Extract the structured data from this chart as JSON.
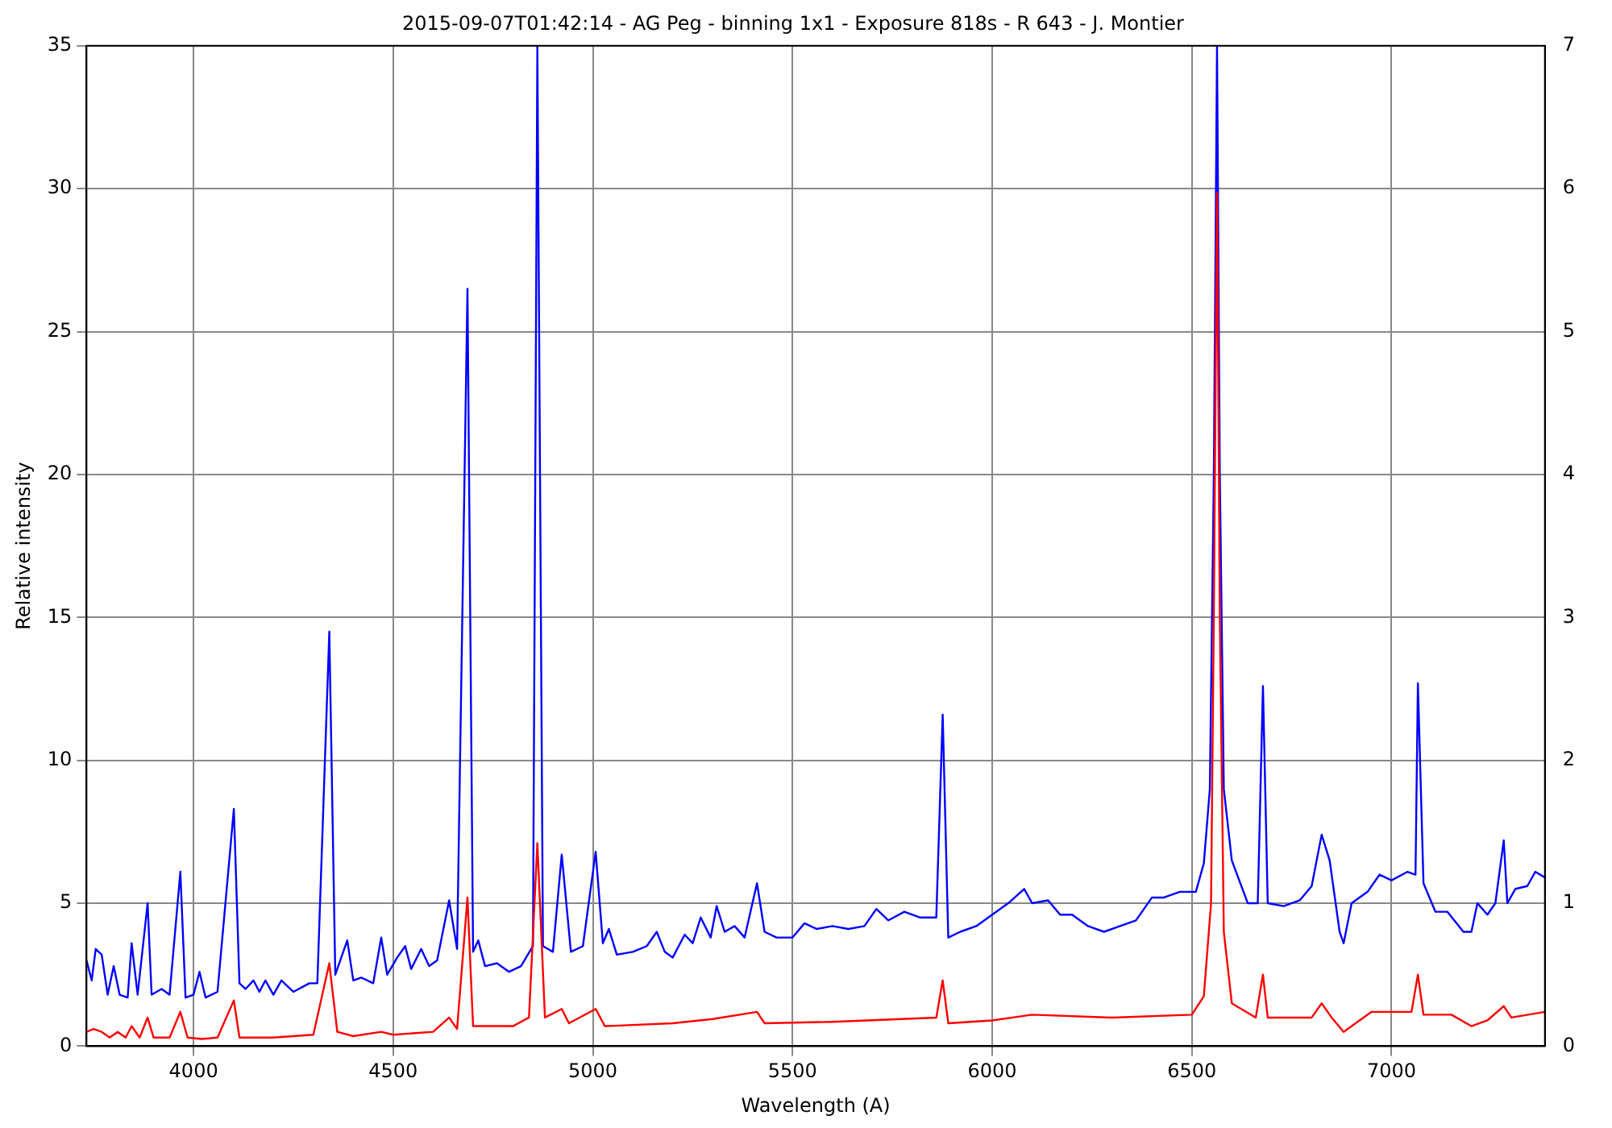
{
  "chart_data": {
    "type": "line",
    "title": "2015-09-07T01:42:14 - AG Peg - binning 1x1 - Exposure 818s - R 643 - J. Montier",
    "xlabel": "Wavelength (A)",
    "ylabel": "Relative intensity",
    "xlim": [
      3732,
      7384
    ],
    "xticks": [
      4000,
      4500,
      5000,
      5500,
      6000,
      6500,
      7000
    ],
    "ylim": [
      0,
      35
    ],
    "yticks": [
      0,
      5,
      10,
      15,
      20,
      25,
      30,
      35
    ],
    "y2lim": [
      0,
      7
    ],
    "y2ticks": [
      0,
      1,
      2,
      3,
      4,
      5,
      6,
      7
    ],
    "grid": true,
    "marker": "none",
    "legend": false,
    "series": [
      {
        "color": "#0000ff",
        "x": [
          3732,
          3745,
          3755,
          3770,
          3785,
          3800,
          3815,
          3835,
          3845,
          3860,
          3885,
          3895,
          3920,
          3940,
          3967,
          3980,
          4000,
          4015,
          4030,
          4060,
          4101,
          4115,
          4130,
          4150,
          4165,
          4180,
          4200,
          4220,
          4250,
          4290,
          4310,
          4340,
          4355,
          4385,
          4400,
          4420,
          4450,
          4470,
          4485,
          4510,
          4530,
          4545,
          4570,
          4590,
          4610,
          4640,
          4660,
          4686,
          4700,
          4713,
          4730,
          4760,
          4790,
          4820,
          4850,
          4861,
          4875,
          4900,
          4922,
          4945,
          4975,
          5007,
          5025,
          5040,
          5060,
          5100,
          5135,
          5160,
          5180,
          5200,
          5230,
          5250,
          5270,
          5295,
          5310,
          5330,
          5355,
          5380,
          5411,
          5430,
          5460,
          5500,
          5530,
          5560,
          5600,
          5640,
          5680,
          5710,
          5740,
          5780,
          5820,
          5860,
          5876,
          5890,
          5920,
          5960,
          6000,
          6040,
          6080,
          6100,
          6140,
          6170,
          6200,
          6240,
          6280,
          6320,
          6360,
          6400,
          6430,
          6470,
          6510,
          6530,
          6545,
          6555,
          6563,
          6570,
          6580,
          6600,
          6640,
          6665,
          6678,
          6690,
          6730,
          6770,
          6800,
          6825,
          6845,
          6870,
          6880,
          6900,
          6940,
          6970,
          7000,
          7040,
          7060,
          7066,
          7080,
          7110,
          7140,
          7180,
          7200,
          7215,
          7240,
          7260,
          7281,
          7290,
          7310,
          7340,
          7360,
          7384
        ],
        "values": [
          3.0,
          2.3,
          3.4,
          3.2,
          1.8,
          2.8,
          1.8,
          1.7,
          3.6,
          1.8,
          5.0,
          1.8,
          2.0,
          1.8,
          6.1,
          1.7,
          1.8,
          2.6,
          1.7,
          1.9,
          8.3,
          2.2,
          2.0,
          2.3,
          1.9,
          2.3,
          1.8,
          2.3,
          1.9,
          2.2,
          2.2,
          14.5,
          2.5,
          3.7,
          2.3,
          2.4,
          2.2,
          3.8,
          2.5,
          3.1,
          3.5,
          2.7,
          3.4,
          2.8,
          3.0,
          5.1,
          3.4,
          26.5,
          3.3,
          3.7,
          2.8,
          2.9,
          2.6,
          2.8,
          3.5,
          35,
          3.5,
          3.3,
          6.7,
          3.3,
          3.5,
          6.8,
          3.6,
          4.1,
          3.2,
          3.3,
          3.5,
          4.0,
          3.3,
          3.1,
          3.9,
          3.6,
          4.5,
          3.8,
          4.9,
          4.0,
          4.2,
          3.8,
          5.7,
          4.0,
          3.8,
          3.8,
          4.3,
          4.1,
          4.2,
          4.1,
          4.2,
          4.8,
          4.4,
          4.7,
          4.5,
          4.5,
          11.6,
          3.8,
          4.0,
          4.2,
          4.6,
          5.0,
          5.5,
          5.0,
          5.1,
          4.6,
          4.6,
          4.2,
          4.0,
          4.2,
          4.4,
          5.2,
          5.2,
          5.4,
          5.4,
          6.4,
          9.0,
          20,
          35,
          20,
          9.0,
          6.5,
          5.0,
          5.0,
          12.6,
          5.0,
          4.9,
          5.1,
          5.6,
          7.4,
          6.5,
          4.0,
          3.6,
          5.0,
          5.4,
          6.0,
          5.8,
          6.1,
          6.0,
          12.7,
          5.7,
          4.7,
          4.7,
          4.0,
          4.0,
          5.0,
          4.6,
          5.0,
          7.2,
          5.0,
          5.5,
          5.6,
          6.1,
          5.9
        ]
      },
      {
        "color": "#ff0000",
        "axis": "y2",
        "x": [
          3732,
          3750,
          3770,
          3790,
          3810,
          3830,
          3845,
          3865,
          3885,
          3900,
          3940,
          3967,
          3985,
          4020,
          4060,
          4101,
          4115,
          4200,
          4300,
          4340,
          4360,
          4400,
          4470,
          4500,
          4600,
          4640,
          4660,
          4686,
          4700,
          4800,
          4840,
          4861,
          4880,
          4922,
          4940,
          5007,
          5030,
          5200,
          5300,
          5411,
          5430,
          5600,
          5860,
          5876,
          5890,
          6000,
          6100,
          6300,
          6500,
          6530,
          6548,
          6555,
          6563,
          6570,
          6580,
          6600,
          6660,
          6678,
          6690,
          6800,
          6825,
          6850,
          6880,
          6950,
          7050,
          7066,
          7080,
          7150,
          7200,
          7240,
          7281,
          7300,
          7384
        ],
        "values": [
          0.1,
          0.12,
          0.1,
          0.06,
          0.1,
          0.06,
          0.14,
          0.06,
          0.2,
          0.06,
          0.06,
          0.24,
          0.06,
          0.05,
          0.06,
          0.32,
          0.06,
          0.06,
          0.08,
          0.58,
          0.1,
          0.07,
          0.1,
          0.08,
          0.1,
          0.2,
          0.12,
          1.04,
          0.14,
          0.14,
          0.2,
          1.42,
          0.2,
          0.26,
          0.16,
          0.26,
          0.14,
          0.16,
          0.19,
          0.24,
          0.16,
          0.17,
          0.2,
          0.46,
          0.16,
          0.18,
          0.22,
          0.2,
          0.22,
          0.35,
          1.0,
          3.0,
          5.97,
          3.0,
          0.8,
          0.3,
          0.2,
          0.5,
          0.2,
          0.2,
          0.3,
          0.2,
          0.1,
          0.24,
          0.24,
          0.5,
          0.22,
          0.22,
          0.14,
          0.18,
          0.28,
          0.2,
          0.24
        ]
      }
    ]
  }
}
